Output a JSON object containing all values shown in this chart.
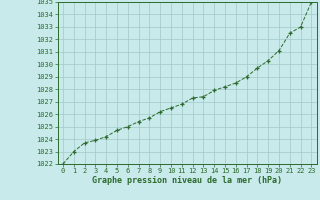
{
  "x": [
    0,
    1,
    2,
    3,
    4,
    5,
    6,
    7,
    8,
    9,
    10,
    11,
    12,
    13,
    14,
    15,
    16,
    17,
    18,
    19,
    20,
    21,
    22,
    23
  ],
  "y": [
    1022.0,
    1023.0,
    1023.7,
    1023.9,
    1024.2,
    1024.7,
    1025.0,
    1025.4,
    1025.7,
    1026.2,
    1026.5,
    1026.8,
    1027.3,
    1027.4,
    1027.9,
    1028.2,
    1028.5,
    1029.0,
    1029.7,
    1030.3,
    1031.1,
    1032.5,
    1033.0,
    1035.0
  ],
  "line_color": "#2d6a2d",
  "marker": "+",
  "bg_color": "#c8eaea",
  "grid_color": "#a0c8c8",
  "xlabel": "Graphe pression niveau de la mer (hPa)",
  "ylim": [
    1022,
    1035
  ],
  "xlim": [
    -0.5,
    23.5
  ],
  "yticks": [
    1022,
    1023,
    1024,
    1025,
    1026,
    1027,
    1028,
    1029,
    1030,
    1031,
    1032,
    1033,
    1034,
    1035
  ],
  "xticks": [
    0,
    1,
    2,
    3,
    4,
    5,
    6,
    7,
    8,
    9,
    10,
    11,
    12,
    13,
    14,
    15,
    16,
    17,
    18,
    19,
    20,
    21,
    22,
    23
  ],
  "tick_fontsize": 5,
  "xlabel_fontsize": 6,
  "label_color": "#2d6a2d",
  "spine_color": "#2d6a2d",
  "linewidth": 0.7,
  "markersize": 3.5,
  "markeredgewidth": 0.9
}
